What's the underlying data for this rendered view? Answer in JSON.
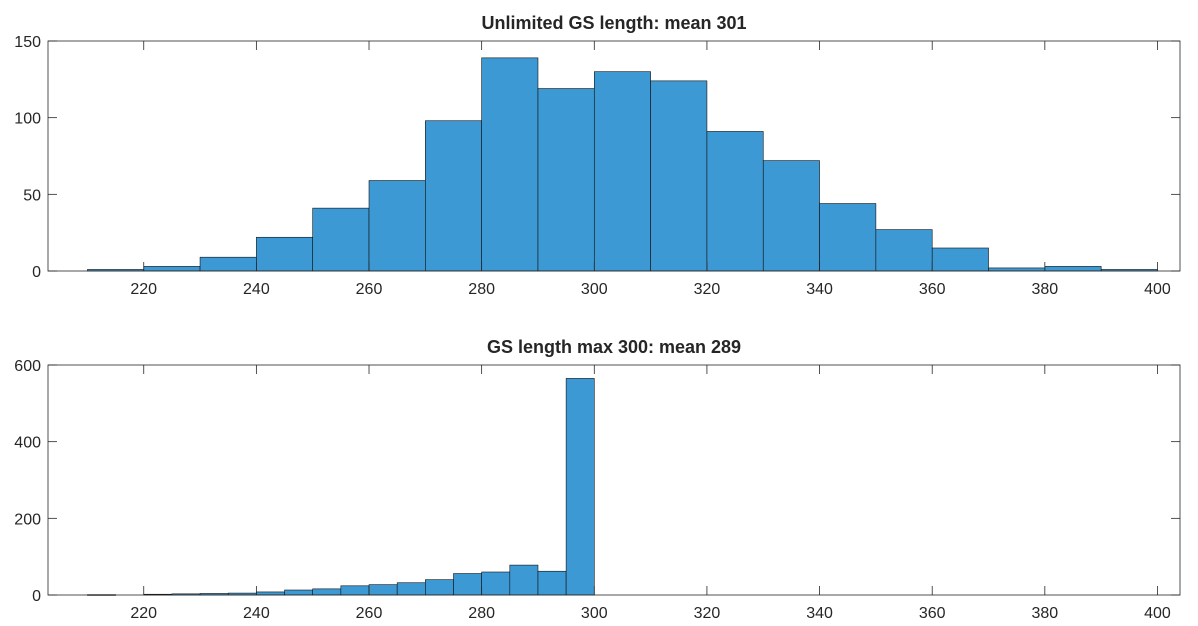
{
  "chart_data": [
    {
      "type": "bar",
      "title": "Unlimited GS length: mean 301",
      "xlabel": "",
      "ylabel": "",
      "xlim": [
        203,
        404
      ],
      "ylim": [
        0,
        150
      ],
      "xticks": [
        220,
        240,
        260,
        280,
        300,
        320,
        340,
        360,
        380,
        400
      ],
      "yticks": [
        0,
        50,
        100,
        150
      ],
      "grid": false,
      "bar_color": "#3d99d4",
      "bins": [
        {
          "start": 210,
          "end": 220,
          "value": 1
        },
        {
          "start": 220,
          "end": 230,
          "value": 3
        },
        {
          "start": 230,
          "end": 240,
          "value": 9
        },
        {
          "start": 240,
          "end": 250,
          "value": 22
        },
        {
          "start": 250,
          "end": 260,
          "value": 41
        },
        {
          "start": 260,
          "end": 270,
          "value": 59
        },
        {
          "start": 270,
          "end": 280,
          "value": 98
        },
        {
          "start": 280,
          "end": 290,
          "value": 139
        },
        {
          "start": 290,
          "end": 300,
          "value": 119
        },
        {
          "start": 300,
          "end": 310,
          "value": 130
        },
        {
          "start": 310,
          "end": 320,
          "value": 124
        },
        {
          "start": 320,
          "end": 330,
          "value": 91
        },
        {
          "start": 330,
          "end": 340,
          "value": 72
        },
        {
          "start": 340,
          "end": 350,
          "value": 44
        },
        {
          "start": 350,
          "end": 360,
          "value": 27
        },
        {
          "start": 360,
          "end": 370,
          "value": 15
        },
        {
          "start": 370,
          "end": 380,
          "value": 2
        },
        {
          "start": 380,
          "end": 390,
          "value": 3
        },
        {
          "start": 390,
          "end": 400,
          "value": 1
        }
      ]
    },
    {
      "type": "bar",
      "title": "GS length max 300: mean 289",
      "xlabel": "",
      "ylabel": "",
      "xlim": [
        203,
        404
      ],
      "ylim": [
        0,
        600
      ],
      "xticks": [
        220,
        240,
        260,
        280,
        300,
        320,
        340,
        360,
        380,
        400
      ],
      "yticks": [
        0,
        200,
        400,
        600
      ],
      "grid": false,
      "bar_color": "#3d99d4",
      "bins": [
        {
          "start": 210,
          "end": 215,
          "value": 1
        },
        {
          "start": 215,
          "end": 220,
          "value": 0
        },
        {
          "start": 220,
          "end": 225,
          "value": 2
        },
        {
          "start": 225,
          "end": 230,
          "value": 3
        },
        {
          "start": 230,
          "end": 235,
          "value": 4
        },
        {
          "start": 235,
          "end": 240,
          "value": 5
        },
        {
          "start": 240,
          "end": 245,
          "value": 8
        },
        {
          "start": 245,
          "end": 250,
          "value": 13
        },
        {
          "start": 250,
          "end": 255,
          "value": 16
        },
        {
          "start": 255,
          "end": 260,
          "value": 24
        },
        {
          "start": 260,
          "end": 265,
          "value": 27
        },
        {
          "start": 265,
          "end": 270,
          "value": 32
        },
        {
          "start": 270,
          "end": 275,
          "value": 40
        },
        {
          "start": 275,
          "end": 280,
          "value": 56
        },
        {
          "start": 280,
          "end": 285,
          "value": 60
        },
        {
          "start": 285,
          "end": 290,
          "value": 78
        },
        {
          "start": 290,
          "end": 295,
          "value": 62
        },
        {
          "start": 295,
          "end": 300,
          "value": 565
        }
      ]
    }
  ]
}
